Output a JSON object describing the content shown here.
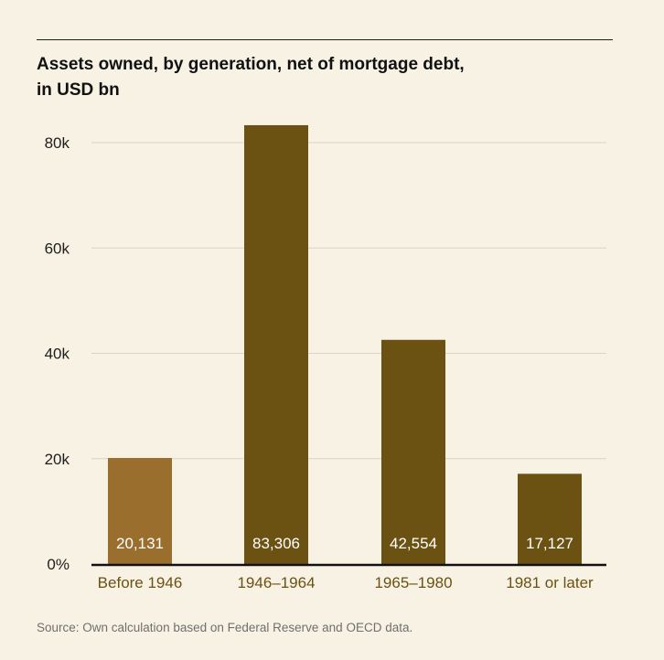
{
  "chart_data": {
    "type": "bar",
    "title_lines": [
      "Assets owned, by generation, net of mortgage debt,",
      "in USD bn"
    ],
    "categories": [
      "Before 1946",
      "1946–1964",
      "1965–1980",
      "1981 or later"
    ],
    "values": [
      20131,
      83306,
      42554,
      17127
    ],
    "data_labels": [
      "20,131",
      "83,306",
      "42,554",
      "17,127"
    ],
    "ylim": [
      0,
      80000
    ],
    "yticks": [
      {
        "value": 0,
        "label": "0%"
      },
      {
        "value": 20000,
        "label": "20k"
      },
      {
        "value": 40000,
        "label": "40k"
      },
      {
        "value": 60000,
        "label": "60k"
      },
      {
        "value": 80000,
        "label": "80k"
      }
    ],
    "grid": true,
    "bar_colors": [
      "#9a6f2e",
      "#6b5112",
      "#6b5112",
      "#6b5112"
    ],
    "category_label_color": "#6b5112",
    "source": "Source: Own calculation based on Federal Reserve and OECD data."
  }
}
